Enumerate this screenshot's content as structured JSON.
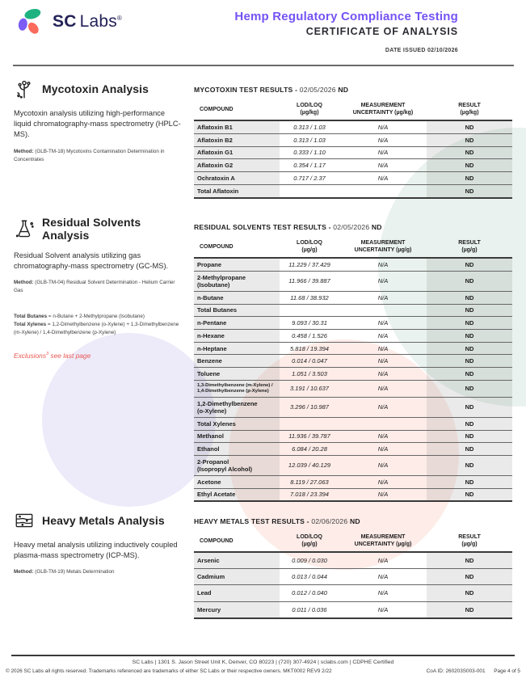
{
  "header": {
    "brand_sc": "SC",
    "brand_labs": "Labs",
    "brand_reg": "®",
    "title": "Hemp Regulatory Compliance Testing",
    "subtitle": "CERTIFICATE OF ANALYSIS",
    "date_issued": "DATE ISSUED 02/10/2026",
    "accent_color": "#7452f3",
    "logo_colors": {
      "green": "#1eb280",
      "purple": "#7b5cf5",
      "coral": "#fb6a5b",
      "text": "#232258"
    }
  },
  "decorative_colors": {
    "teal_circle": "#e9f2ee",
    "lavender_circle": "#edeaf9",
    "pink_circle": "#fdece8"
  },
  "sections": [
    {
      "id": "mycotoxin",
      "icon": "mold-spore-icon",
      "title": "Mycotoxin Analysis",
      "description": "Mycotoxin analysis utilizing high-performance liquid chromatography-mass spectrometry (HPLC-MS).",
      "method_label": "Method:",
      "method": "(GLB-TM-18) Mycotoxins Contamination Determination in Concentrates",
      "heading": {
        "prefix": "MYCOTOXIN TEST RESULTS -",
        "date": "02/05/2026",
        "status": "ND"
      },
      "table": {
        "columns": [
          {
            "label": "COMPOUND",
            "sub": ""
          },
          {
            "label": "LOD/LOQ",
            "sub": "(µg/kg)"
          },
          {
            "label": "MEASUREMENT",
            "sub": "UNCERTAINTY (µg/kg)"
          },
          {
            "label": "RESULT",
            "sub": "(µg/kg)"
          }
        ],
        "rows": [
          {
            "compound_lines": [
              "Aflatoxin B1"
            ],
            "lod_loq": "0.313 / 1.03",
            "uncertainty": "N/A",
            "result": "ND"
          },
          {
            "compound_lines": [
              "Aflatoxin B2"
            ],
            "lod_loq": "0.313 / 1.03",
            "uncertainty": "N/A",
            "result": "ND"
          },
          {
            "compound_lines": [
              "Aflatoxin G1"
            ],
            "lod_loq": "0.333 / 1.10",
            "uncertainty": "N/A",
            "result": "ND"
          },
          {
            "compound_lines": [
              "Aflatoxin G2"
            ],
            "lod_loq": "0.354 / 1.17",
            "uncertainty": "N/A",
            "result": "ND"
          },
          {
            "compound_lines": [
              "Ochratoxin A"
            ],
            "lod_loq": "0.717 / 2.37",
            "uncertainty": "N/A",
            "result": "ND"
          },
          {
            "compound_lines": [
              "Total Aflatoxin"
            ],
            "lod_loq": "",
            "uncertainty": "",
            "result": "ND"
          }
        ]
      }
    },
    {
      "id": "residual-solvents",
      "icon": "flask-icon",
      "title": "Residual Solvents Analysis",
      "description": "Residual Solvent analysis utilizing gas chromatography-mass spectrometry (GC-MS).",
      "method_label": "Method:",
      "method": "(GLB-TM-04) Residual Solvent Determination - Helium Carrier Gas",
      "notes": [
        {
          "bold": "Total Butanes",
          "text": " = n-Butane + 2-Methylpropane (Isobutane)"
        },
        {
          "bold": "Total Xylenes",
          "text": " = 1,2-Dimethylbenzene (o-Xylene) + 1,3-Dimethylbenzene (m-Xylene) / 1,4-Dimethylbenzene (p-Xylene)"
        }
      ],
      "exclusions": {
        "word": "Exclusions",
        "sup": "3",
        "rest": " see last page"
      },
      "heading": {
        "prefix": "RESIDUAL SOLVENTS TEST RESULTS -",
        "date": "02/05/2026",
        "status": "ND"
      },
      "table": {
        "columns": [
          {
            "label": "COMPOUND",
            "sub": ""
          },
          {
            "label": "LOD/LOQ",
            "sub": "(µg/g)"
          },
          {
            "label": "MEASUREMENT",
            "sub": "UNCERTAINTY (µg/g)"
          },
          {
            "label": "RESULT",
            "sub": "(µg/g)"
          }
        ],
        "rows": [
          {
            "compound_lines": [
              "Propane"
            ],
            "lod_loq": "11.229 / 37.429",
            "uncertainty": "N/A",
            "result": "ND"
          },
          {
            "compound_lines": [
              "2-Methylpropane",
              "(Isobutane)"
            ],
            "lod_loq": "11.966 / 39.887",
            "uncertainty": "N/A",
            "result": "ND"
          },
          {
            "compound_lines": [
              "n-Butane"
            ],
            "lod_loq": "11.68 / 38.932",
            "uncertainty": "N/A",
            "result": "ND"
          },
          {
            "compound_lines": [
              "Total Butanes"
            ],
            "lod_loq": "",
            "uncertainty": "",
            "result": "ND"
          },
          {
            "compound_lines": [
              "n-Pentane"
            ],
            "lod_loq": "9.093 / 30.31",
            "uncertainty": "N/A",
            "result": "ND"
          },
          {
            "compound_lines": [
              "n-Hexane"
            ],
            "lod_loq": "0.458 / 1.526",
            "uncertainty": "N/A",
            "result": "ND"
          },
          {
            "compound_lines": [
              "n-Heptane"
            ],
            "lod_loq": "5.818 / 19.394",
            "uncertainty": "N/A",
            "result": "ND"
          },
          {
            "compound_lines": [
              "Benzene"
            ],
            "lod_loq": "0.014 / 0.047",
            "uncertainty": "N/A",
            "result": "ND"
          },
          {
            "compound_lines": [
              "Toluene"
            ],
            "lod_loq": "1.051 / 3.503",
            "uncertainty": "N/A",
            "result": "ND"
          },
          {
            "compound_lines": [
              "1,3-Dimethylbenzene (m-Xylene) /",
              "1,4-Dimethylbenzene (p-Xylene)"
            ],
            "small": true,
            "lod_loq": "3.191 / 10.637",
            "uncertainty": "N/A",
            "result": "ND"
          },
          {
            "compound_lines": [
              "1,2-Dimethylbenzene",
              "(o-Xylene)"
            ],
            "lod_loq": "3.296 / 10.987",
            "uncertainty": "N/A",
            "result": "ND"
          },
          {
            "compound_lines": [
              "Total Xylenes"
            ],
            "lod_loq": "",
            "uncertainty": "",
            "result": "ND"
          },
          {
            "compound_lines": [
              "Methanol"
            ],
            "lod_loq": "11.936 / 39.787",
            "uncertainty": "N/A",
            "result": "ND"
          },
          {
            "compound_lines": [
              "Ethanol"
            ],
            "lod_loq": "6.084 / 20.28",
            "uncertainty": "N/A",
            "result": "ND"
          },
          {
            "compound_lines": [
              "2-Propanol",
              "(Isopropyl Alcohol)"
            ],
            "lod_loq": "12.039 / 40.129",
            "uncertainty": "N/A",
            "result": "ND"
          },
          {
            "compound_lines": [
              "Acetone"
            ],
            "lod_loq": "8.119 / 27.063",
            "uncertainty": "N/A",
            "result": "ND"
          },
          {
            "compound_lines": [
              "Ethyl Acetate"
            ],
            "lod_loq": "7.018 / 23.394",
            "uncertainty": "N/A",
            "result": "ND"
          }
        ]
      }
    },
    {
      "id": "heavy-metals",
      "icon": "metal-layers-icon",
      "title": "Heavy Metals Analysis",
      "description": "Heavy metal analysis utilizing inductively coupled plasma-mass spectrometry (ICP-MS).",
      "method_label": "Method:",
      "method": "(GLB-TM-19) Metals Determination",
      "heading": {
        "prefix": "HEAVY METALS TEST RESULTS -",
        "date": "02/06/2026",
        "status": "ND"
      },
      "table": {
        "columns": [
          {
            "label": "COMPOUND",
            "sub": ""
          },
          {
            "label": "LOD/LOQ",
            "sub": "(µg/g)"
          },
          {
            "label": "MEASUREMENT",
            "sub": "UNCERTAINTY (µg/g)"
          },
          {
            "label": "RESULT",
            "sub": "(µg/g)"
          }
        ],
        "rows": [
          {
            "compound_lines": [
              "Arsenic"
            ],
            "lod_loq": "0.009 / 0.030",
            "uncertainty": "N/A",
            "result": "ND"
          },
          {
            "compound_lines": [
              "Cadmium"
            ],
            "lod_loq": "0.013 / 0.044",
            "uncertainty": "N/A",
            "result": "ND"
          },
          {
            "compound_lines": [
              "Lead"
            ],
            "lod_loq": "0.012 / 0.040",
            "uncertainty": "N/A",
            "result": "ND"
          },
          {
            "compound_lines": [
              "Mercury"
            ],
            "lod_loq": "0.011 / 0.036",
            "uncertainty": "N/A",
            "result": "ND"
          }
        ]
      }
    }
  ],
  "footer": {
    "line1": "SC Labs | 1301 S. Jason Street Unit K, Denver, CO 80223 | (720) 307-4924 | sclabs.com | CDPHE Certified",
    "line2_left": "© 2026 SC Labs all rights reserved. Trademarks referenced are trademarks of either SC Labs or their respective owners. MKT0002 REV9 2/22",
    "coa_id": "CoA ID: 260203S003-001",
    "page": "Page 4 of 5"
  }
}
